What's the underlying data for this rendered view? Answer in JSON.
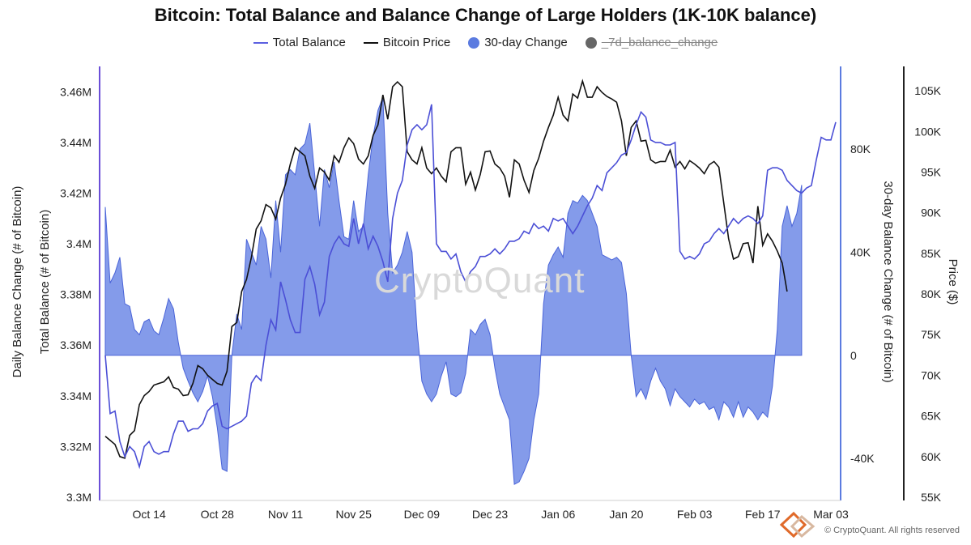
{
  "title": "Bitcoin: Total Balance and Balance Change of Large Holders (1K-10K balance)",
  "legend": [
    {
      "name": "Total Balance",
      "type": "line",
      "color": "#5b5fe0",
      "hidden": false
    },
    {
      "name": "Bitcoin Price",
      "type": "line",
      "color": "#111111",
      "hidden": false
    },
    {
      "name": "30-day Change",
      "type": "dot",
      "color": "#5b7be0",
      "hidden": false
    },
    {
      "name": "_7d_balance_change",
      "type": "dot",
      "color": "#666666",
      "hidden": true
    }
  ],
  "watermark": "CryptoQuant",
  "copyright": "© CryptoQuant. All rights reserved",
  "colors": {
    "balance": "#4b4fd6",
    "price": "#111111",
    "change_fill": "#6f8ae6",
    "change_stroke": "#4a64d8",
    "axis_left": "#6b4fd8",
    "axis_right": "#5b7be0"
  },
  "axes": {
    "left_title": "Total Balance (# of Bitcoin)",
    "far_left_title": "Daily Balance Change (# of Bitcoin)",
    "right_title": "30-day Balance Change (# of Bitcoin)",
    "far_right_title": "Price ($)",
    "left_ticks": [
      "3.3M",
      "3.32M",
      "3.34M",
      "3.36M",
      "3.38M",
      "3.4M",
      "3.42M",
      "3.44M",
      "3.46M"
    ],
    "right_ticks": [
      "-40K",
      "0",
      "40K",
      "80K"
    ],
    "price_ticks": [
      "55K",
      "60K",
      "65K",
      "70K",
      "75K",
      "80K",
      "85K",
      "90K",
      "95K",
      "100K",
      "105K"
    ],
    "x_ticks": [
      "Oct 14",
      "Oct 28",
      "Nov 11",
      "Nov 25",
      "Dec 09",
      "Dec 23",
      "Jan 06",
      "Jan 20",
      "Feb 03",
      "Feb 17",
      "Mar 03"
    ]
  },
  "chart_data": {
    "type": "line",
    "x_start": "2024-10-05",
    "x_end": "2025-03-09",
    "series": [
      {
        "name": "Total Balance",
        "axis": "left",
        "unit": "BTC",
        "values": [
          3.356,
          3.333,
          3.334,
          3.322,
          3.316,
          3.32,
          3.318,
          3.312,
          3.32,
          3.322,
          3.318,
          3.317,
          3.318,
          3.318,
          3.325,
          3.33,
          3.33,
          3.326,
          3.327,
          3.327,
          3.329,
          3.334,
          3.336,
          3.337,
          3.328,
          3.327,
          3.328,
          3.329,
          3.33,
          3.332,
          3.345,
          3.348,
          3.346,
          3.36,
          3.37,
          3.366,
          3.385,
          3.378,
          3.37,
          3.365,
          3.365,
          3.386,
          3.391,
          3.384,
          3.372,
          3.377,
          3.395,
          3.4,
          3.403,
          3.4,
          3.399,
          3.41,
          3.4,
          3.408,
          3.398,
          3.403,
          3.399,
          3.393,
          3.385,
          3.41,
          3.42,
          3.425,
          3.439,
          3.445,
          3.447,
          3.445,
          3.447,
          3.455,
          3.4,
          3.397,
          3.397,
          3.394,
          3.396,
          3.389,
          3.385,
          3.389,
          3.391,
          3.395,
          3.395,
          3.396,
          3.398,
          3.396,
          3.398,
          3.401,
          3.401,
          3.402,
          3.405,
          3.404,
          3.408,
          3.406,
          3.407,
          3.405,
          3.41,
          3.409,
          3.41,
          3.407,
          3.404,
          3.407,
          3.411,
          3.415,
          3.418,
          3.423,
          3.421,
          3.428,
          3.43,
          3.432,
          3.435,
          3.436,
          3.441,
          3.447,
          3.452,
          3.45,
          3.441,
          3.44,
          3.44,
          3.439,
          3.439,
          3.44,
          3.397,
          3.394,
          3.395,
          3.394,
          3.396,
          3.4,
          3.401,
          3.404,
          3.406,
          3.404,
          3.407,
          3.41,
          3.408,
          3.41,
          3.411,
          3.41,
          3.408,
          3.411,
          3.429,
          3.43,
          3.43,
          3.429,
          3.425,
          3.423,
          3.421,
          3.42,
          3.422,
          3.423,
          3.433,
          3.442,
          3.441,
          3.441,
          3.448
        ]
      },
      {
        "name": "Bitcoin Price",
        "axis": "price",
        "unit": "USD",
        "values": [
          62500,
          62000,
          61500,
          60000,
          59800,
          62600,
          63200,
          66400,
          67500,
          68000,
          68800,
          69000,
          69200,
          69800,
          68500,
          68300,
          67500,
          67600,
          69000,
          71200,
          70800,
          70000,
          69500,
          69000,
          68800,
          70500,
          76000,
          76500,
          80300,
          81800,
          84500,
          88000,
          89000,
          91000,
          90600,
          89200,
          91800,
          93500,
          96000,
          98000,
          97500,
          97000,
          94500,
          93000,
          95500,
          95000,
          94000,
          97000,
          96200,
          98000,
          99200,
          98500,
          96600,
          96000,
          97000,
          99500,
          100800,
          104500,
          101500,
          105500,
          106100,
          105500,
          97500,
          96500,
          96000,
          98000,
          95500,
          94800,
          95500,
          94500,
          93800,
          97500,
          98000,
          98000,
          93500,
          95000,
          92800,
          94700,
          97500,
          97600,
          96000,
          95500,
          94500,
          91900,
          96500,
          96000,
          94000,
          92500,
          95200,
          96700,
          98800,
          100500,
          102000,
          104200,
          102000,
          101300,
          104600,
          104100,
          106200,
          104200,
          104200,
          105500,
          104800,
          104300,
          104000,
          103600,
          101300,
          97000,
          100500,
          101300,
          98800,
          98900,
          96500,
          96100,
          96300,
          96300,
          97700,
          95600,
          96300,
          95400,
          96400,
          96000,
          95500,
          94800,
          95900,
          96300,
          95600,
          91200,
          86800,
          84300,
          84600,
          86200,
          86300,
          83800,
          90800,
          86000,
          87400,
          86500,
          85300,
          83800,
          80300
        ]
      },
      {
        "name": "30-day Change",
        "axis": "right",
        "unit": "BTC",
        "values": [
          57500,
          28000,
          32000,
          38000,
          20000,
          19000,
          10000,
          8000,
          13000,
          14000,
          9500,
          8000,
          14500,
          22000,
          18000,
          5000,
          -5000,
          -10000,
          -14500,
          -18000,
          -14000,
          -8000,
          -16000,
          -28000,
          -44000,
          -45000,
          0,
          16000,
          10000,
          45000,
          40000,
          35000,
          50000,
          45000,
          30000,
          60000,
          40000,
          70000,
          72000,
          70000,
          80000,
          82000,
          90000,
          70000,
          50000,
          72000,
          65000,
          75000,
          60000,
          46000,
          45000,
          60000,
          48000,
          50000,
          70000,
          85000,
          95000,
          100000,
          55000,
          32000,
          35000,
          40000,
          48000,
          40000,
          10000,
          -10000,
          -15000,
          -18000,
          -15000,
          -8000,
          -2500,
          -15000,
          -16000,
          -14500,
          -7000,
          10000,
          8000,
          12000,
          14000,
          8000,
          -5000,
          -15000,
          -20000,
          -25000,
          -50000,
          -49000,
          -45000,
          -40000,
          -25000,
          -15000,
          20000,
          35000,
          39000,
          42000,
          38000,
          55000,
          60000,
          59000,
          62000,
          60000,
          55000,
          50000,
          39000,
          38000,
          37000,
          38000,
          36000,
          24000,
          0,
          -16000,
          -13000,
          -17000,
          -10000,
          -5000,
          -10000,
          -13000,
          -19500,
          -13000,
          -16000,
          -18000,
          -20000,
          -17000,
          -19000,
          -18000,
          -21000,
          -20000,
          -25000,
          -18000,
          -20000,
          -24000,
          -18000,
          -24000,
          -20000,
          -22000,
          -25000,
          -22000,
          -24000,
          -12000,
          10000,
          50000,
          58000,
          50000,
          55000,
          66000
        ]
      }
    ],
    "left_range": [
      3.3,
      3.47
    ],
    "price_range": [
      55000,
      108000
    ],
    "change_range": [
      -55000,
      112000
    ]
  }
}
